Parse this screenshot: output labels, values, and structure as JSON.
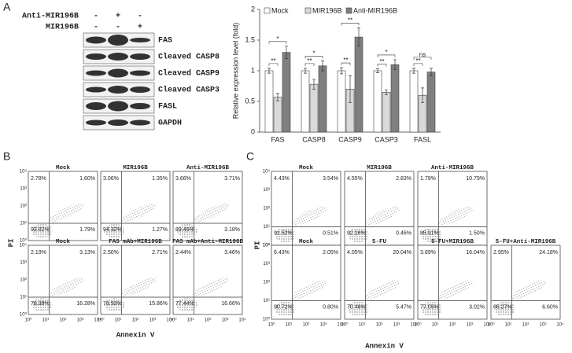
{
  "panel_labels": [
    "A",
    "B",
    "C"
  ],
  "panel_a": {
    "treatments": [
      {
        "label": "Anti-MIR196B",
        "signs": [
          "-",
          "+",
          "-"
        ]
      },
      {
        "label": "MIR196B",
        "signs": [
          "-",
          "-",
          "+"
        ]
      }
    ],
    "bands": [
      "FAS",
      "Cleaved CASP8",
      "Cleaved CASP9",
      "Cleaved CASP3",
      "FASL",
      "GAPDH"
    ]
  },
  "chart_data": {
    "type": "bar",
    "y_label": "Relative expression level (fold)",
    "categories": [
      "FAS",
      "CASP8",
      "CASP9",
      "CASP3",
      "FASL"
    ],
    "series": [
      {
        "name": "Mock",
        "color": "#ffffff",
        "values": [
          1,
          1,
          1,
          1,
          1
        ],
        "errors": [
          0.04,
          0.04,
          0.05,
          0.03,
          0.04
        ]
      },
      {
        "name": "MIR196B",
        "color": "#d9d9d9",
        "values": [
          0.57,
          0.78,
          0.7,
          0.65,
          0.6
        ],
        "errors": [
          0.06,
          0.08,
          0.22,
          0.04,
          0.12
        ]
      },
      {
        "name": "Anti-MIR196B",
        "color": "#7f7f7f",
        "values": [
          1.3,
          1.08,
          1.55,
          1.1,
          0.98
        ],
        "errors": [
          0.1,
          0.08,
          0.15,
          0.08,
          0.06
        ]
      }
    ],
    "significance": [
      [
        "**",
        "*"
      ],
      [
        "**",
        "*"
      ],
      [
        "**",
        "**"
      ],
      [
        "**",
        "*"
      ],
      [
        "**",
        "ns"
      ]
    ],
    "ylim": [
      0,
      2
    ],
    "yticks": [
      0,
      0.5,
      1,
      1.5,
      2
    ]
  },
  "panel_b": {
    "y_label": "PI",
    "x_label": "Annexin V",
    "ticks": [
      "10⁰",
      "10¹",
      "10²",
      "10³",
      "10⁴"
    ],
    "plots": [
      [
        {
          "title": "Mock",
          "quadrants": [
            "2.78%",
            "1.60%",
            "93.82%",
            "1.79%"
          ]
        },
        {
          "title": "MIR196B",
          "quadrants": [
            "3.06%",
            "1.35%",
            "94.32%",
            "1.27%"
          ]
        },
        {
          "title": "Anti-MIR196B",
          "quadrants": [
            "3.66%",
            "3.71%",
            "89.45%",
            "3.18%"
          ]
        }
      ],
      [
        {
          "title": "Mock",
          "quadrants": [
            "2.19%",
            "3.13%",
            "78.39%",
            "16.28%"
          ]
        },
        {
          "title": "FAS mAb+MIR196B",
          "quadrants": [
            "2.50%",
            "2.71%",
            "78.93%",
            "15.86%"
          ]
        },
        {
          "title": "FAS mAb+Anti-MIR196B",
          "quadrants": [
            "2.44%",
            "3.46%",
            "77.44%",
            "16.66%"
          ]
        }
      ]
    ]
  },
  "panel_c": {
    "y_label": "PI",
    "x_label": "Annexin V",
    "ticks": [
      "10⁰",
      "10¹",
      "10²",
      "10³",
      "10⁴"
    ],
    "plots": [
      [
        {
          "title": "Mock",
          "quadrants": [
            "4.43%",
            "3.54%",
            "91.52%",
            "0.51%"
          ]
        },
        {
          "title": "MIR196B",
          "quadrants": [
            "4.55%",
            "2.83%",
            "92.16%",
            "0.46%"
          ]
        },
        {
          "title": "Anti-MIR196B",
          "quadrants": [
            "1.79%",
            "10.79%",
            "85.91%",
            "1.50%"
          ]
        }
      ],
      [
        {
          "title": "Mock",
          "quadrants": [
            "6.43%",
            "2.05%",
            "90.72%",
            "0.80%"
          ]
        },
        {
          "title": "5-FU",
          "quadrants": [
            "4.05%",
            "20.04%",
            "70.48%",
            "5.47%"
          ]
        },
        {
          "title": "5-FU+MIR196B",
          "quadrants": [
            "3.89%",
            "16.04%",
            "77.05%",
            "3.02%"
          ]
        },
        {
          "title": "5-FU+Anti-MIR196B",
          "quadrants": [
            "2.95%",
            "24.18%",
            "66.27%",
            "6.60%"
          ]
        }
      ]
    ]
  }
}
